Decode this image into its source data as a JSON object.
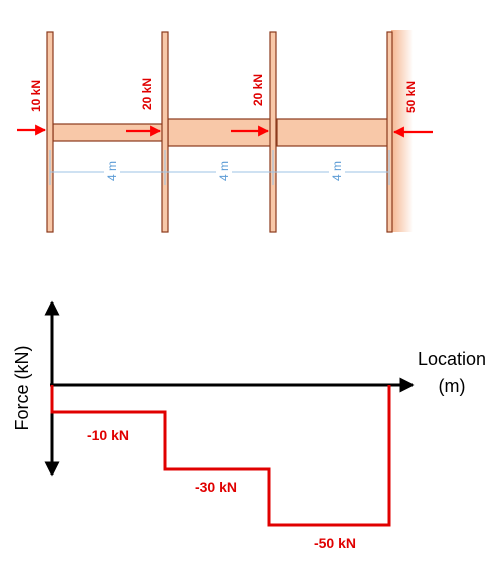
{
  "structure": {
    "applied_forces": [
      {
        "label": "10 kN",
        "direction": "right"
      },
      {
        "label": "20 kN",
        "direction": "right"
      },
      {
        "label": "20 kN",
        "direction": "right"
      },
      {
        "label": "50 kN",
        "direction": "left"
      }
    ],
    "span_labels": [
      "4 m",
      "4 m",
      "4 m"
    ],
    "colors": {
      "member_fill": "#f8c8a8",
      "member_stroke": "#8b3a1c",
      "force_arrow": "#ff0000",
      "dimension": "#5b9bd5"
    }
  },
  "graph": {
    "y_axis_label": "Force (kN)",
    "x_axis_label_line1": "Location",
    "x_axis_label_line2": "(m)",
    "step_labels": [
      "-10 kN",
      "-30 kN",
      "-50 kN"
    ],
    "colors": {
      "axis": "#000000",
      "step_line": "#e00000"
    }
  }
}
